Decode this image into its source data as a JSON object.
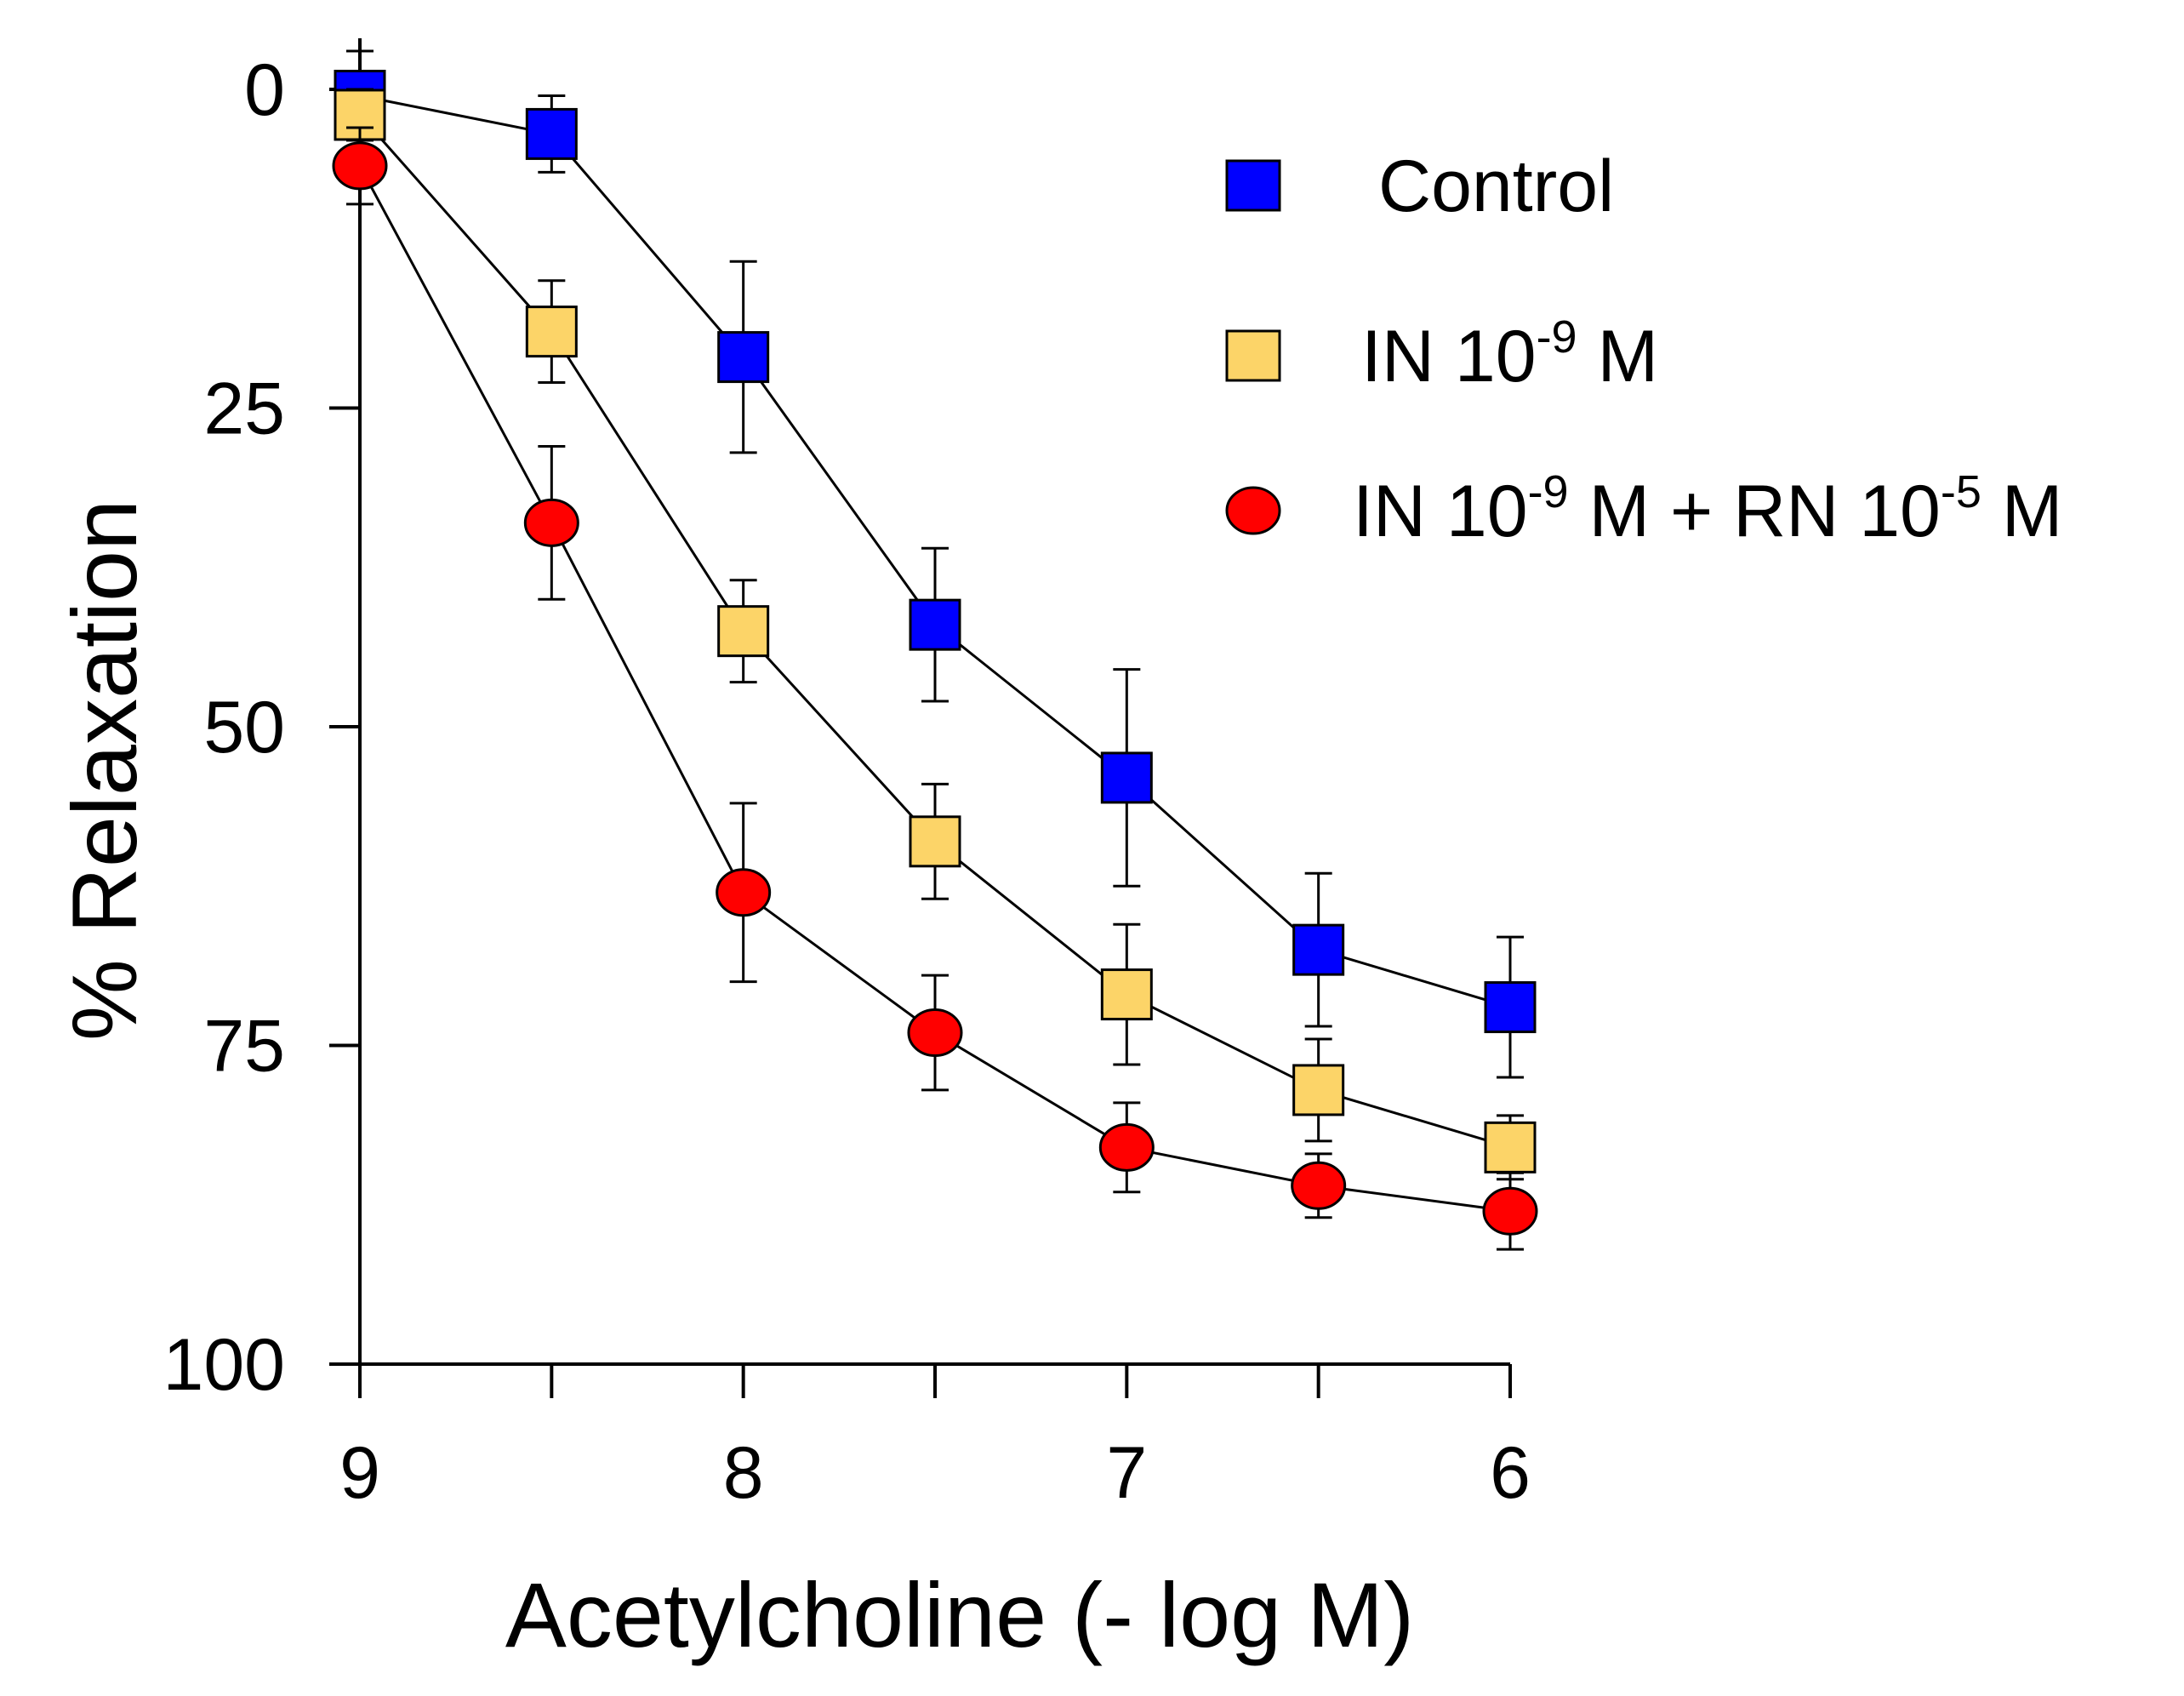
{
  "chart_data": {
    "type": "line",
    "title": "",
    "xlabel": "Acetylcholine (- log M)",
    "ylabel": "% Relaxation",
    "x": [
      9,
      8.5,
      8,
      7.5,
      7,
      6.5,
      6
    ],
    "xlim": [
      9,
      6
    ],
    "ylim": [
      0,
      100
    ],
    "y_inverted": true,
    "x_ticks": [
      9,
      8,
      7,
      6
    ],
    "x_tick_labels": [
      "9",
      "8",
      "7",
      "6"
    ],
    "y_ticks": [
      0,
      25,
      50,
      75,
      100
    ],
    "y_tick_labels": [
      "0",
      "25",
      "50",
      "75",
      "100"
    ],
    "grid": false,
    "legend_position": "top-right",
    "series": [
      {
        "name": "Control",
        "legend_parts": [
          {
            "text": "Control"
          }
        ],
        "marker": "square",
        "color": "#0000ff",
        "values": [
          0.5,
          3.5,
          21,
          42,
          54,
          67.5,
          72
        ],
        "errors": [
          3.5,
          3,
          7.5,
          6,
          8.5,
          6,
          5.5
        ]
      },
      {
        "name": "IN 10-9 M",
        "legend_parts": [
          {
            "text": "IN 10"
          },
          {
            "text": "-9",
            "sup": true
          },
          {
            "text": " M"
          }
        ],
        "marker": "square",
        "color": "#fcd468",
        "values": [
          2,
          19,
          42.5,
          59,
          71,
          78.5,
          83
        ],
        "errors": [
          2,
          4,
          4,
          4.5,
          5.5,
          4,
          2.5
        ]
      },
      {
        "name": "IN 10-9 M + RN 10-5 M",
        "legend_parts": [
          {
            "text": "IN 10"
          },
          {
            "text": "-9",
            "sup": true
          },
          {
            "text": " M + RN 10"
          },
          {
            "text": "-5",
            "sup": true
          },
          {
            "text": " M"
          }
        ],
        "marker": "circle",
        "color": "#ff0000",
        "values": [
          6,
          34,
          63,
          74,
          83,
          86,
          88
        ],
        "errors": [
          3,
          6,
          7,
          4.5,
          3.5,
          2.5,
          3
        ]
      }
    ]
  }
}
